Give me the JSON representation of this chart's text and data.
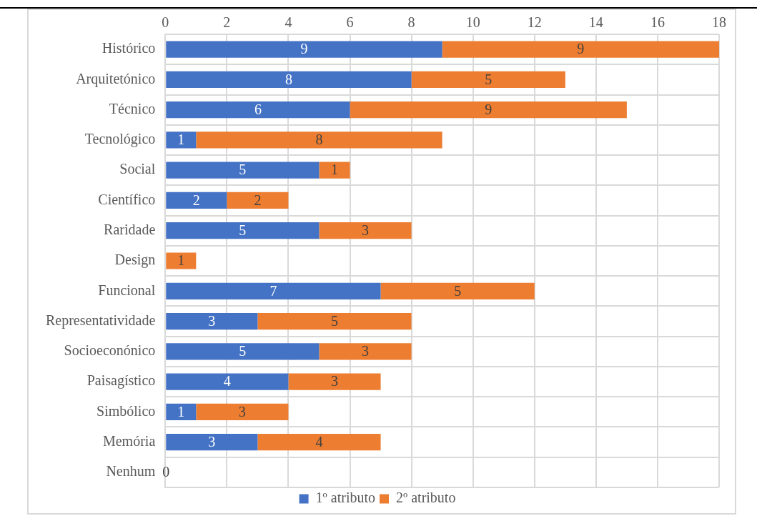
{
  "chart_data": {
    "type": "bar",
    "orientation": "horizontal",
    "stacked": true,
    "categories": [
      "Histórico",
      "Arquitetónico",
      "Técnico",
      "Tecnológico",
      "Social",
      "Científico",
      "Raridade",
      "Design",
      "Funcional",
      "Representatividade",
      "Socioeconónico",
      "Paisagístico",
      "Simbólico",
      "Memória",
      "Nenhum"
    ],
    "series": [
      {
        "name": "1º atributo",
        "color": "#4472c4",
        "values": [
          9,
          8,
          6,
          1,
          5,
          2,
          5,
          null,
          7,
          3,
          5,
          4,
          1,
          3,
          0
        ],
        "value_labels": [
          "9",
          "8",
          "6",
          "1",
          "5",
          "2",
          "5",
          null,
          "7",
          "3",
          "5",
          "4",
          "1",
          "3",
          "0"
        ]
      },
      {
        "name": "2º atributo",
        "color": "#ed7d31",
        "values": [
          9,
          5,
          9,
          8,
          1,
          2,
          3,
          1,
          5,
          5,
          3,
          3,
          3,
          4,
          null
        ],
        "value_labels": [
          "9",
          "5",
          "9",
          "8",
          "1",
          "2",
          "3",
          "1",
          "5",
          "5",
          "3",
          "3",
          "3",
          "4",
          null
        ]
      }
    ],
    "xlim": [
      0,
      18
    ],
    "xticks": [
      0,
      2,
      4,
      6,
      8,
      10,
      12,
      14,
      16,
      18
    ],
    "grid": true,
    "legend": "bottom"
  }
}
